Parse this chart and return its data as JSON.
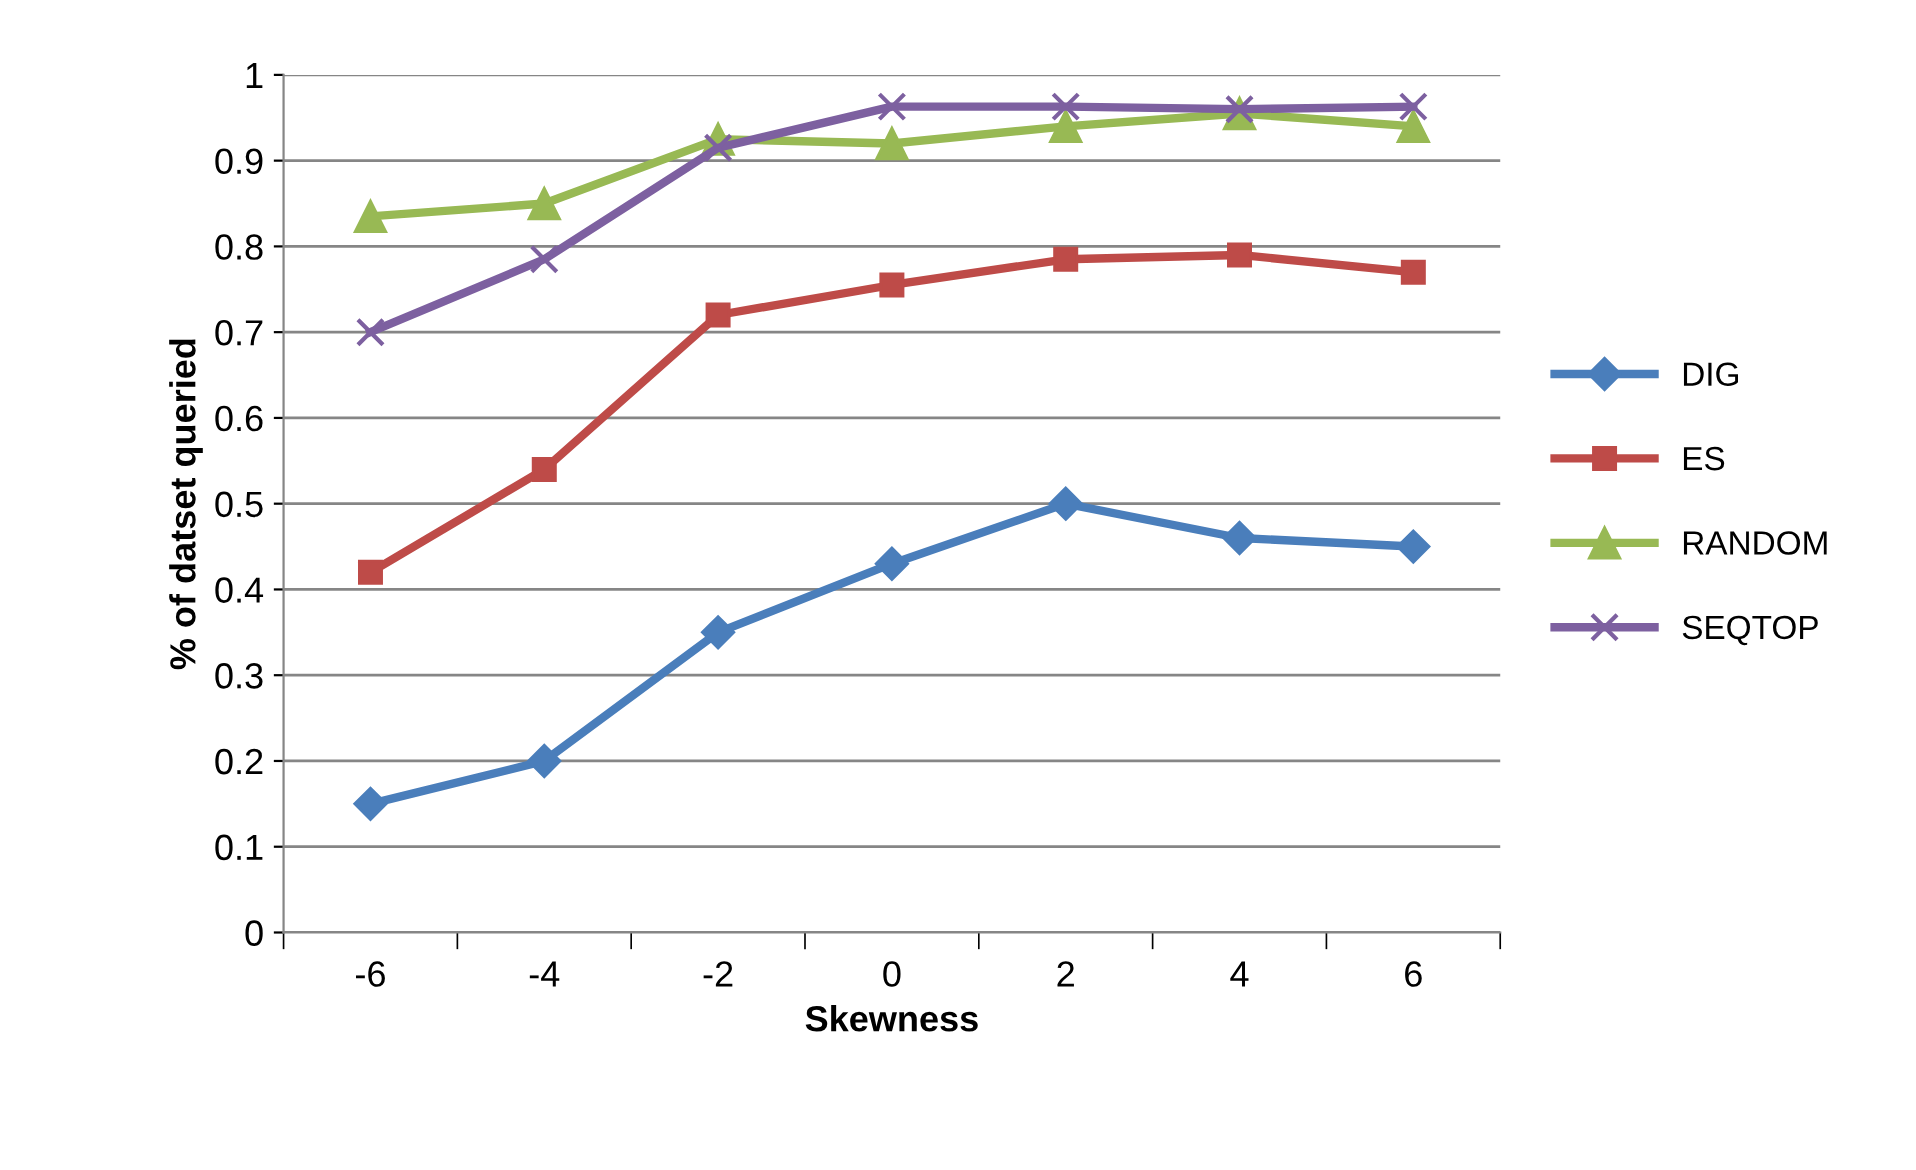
{
  "chart_data": {
    "type": "line",
    "xlabel": "Skewness",
    "ylabel": "% of datset queried",
    "categories": [
      "-6",
      "-4",
      "-2",
      "0",
      "2",
      "4",
      "6"
    ],
    "series": [
      {
        "name": "DIG",
        "color": "#4a7ebb",
        "marker": "diamond",
        "values": [
          0.15,
          0.2,
          0.35,
          0.43,
          0.5,
          0.46,
          0.45
        ]
      },
      {
        "name": "ES",
        "color": "#be4b48",
        "marker": "square",
        "values": [
          0.42,
          0.54,
          0.72,
          0.755,
          0.785,
          0.79,
          0.77
        ]
      },
      {
        "name": "RANDOM",
        "color": "#98b954",
        "marker": "triangle",
        "values": [
          0.835,
          0.85,
          0.925,
          0.92,
          0.94,
          0.955,
          0.94
        ]
      },
      {
        "name": "SEQTOP",
        "color": "#7d60a0",
        "marker": "cross",
        "values": [
          0.7,
          0.785,
          0.915,
          0.963,
          0.963,
          0.96,
          0.963
        ]
      }
    ],
    "ylim": [
      0,
      1
    ],
    "yticks": [
      0,
      0.1,
      0.2,
      0.3,
      0.4,
      0.5,
      0.6,
      0.7,
      0.8,
      0.9,
      1
    ],
    "grid": "y",
    "legend": "right",
    "line_style": "solid"
  }
}
